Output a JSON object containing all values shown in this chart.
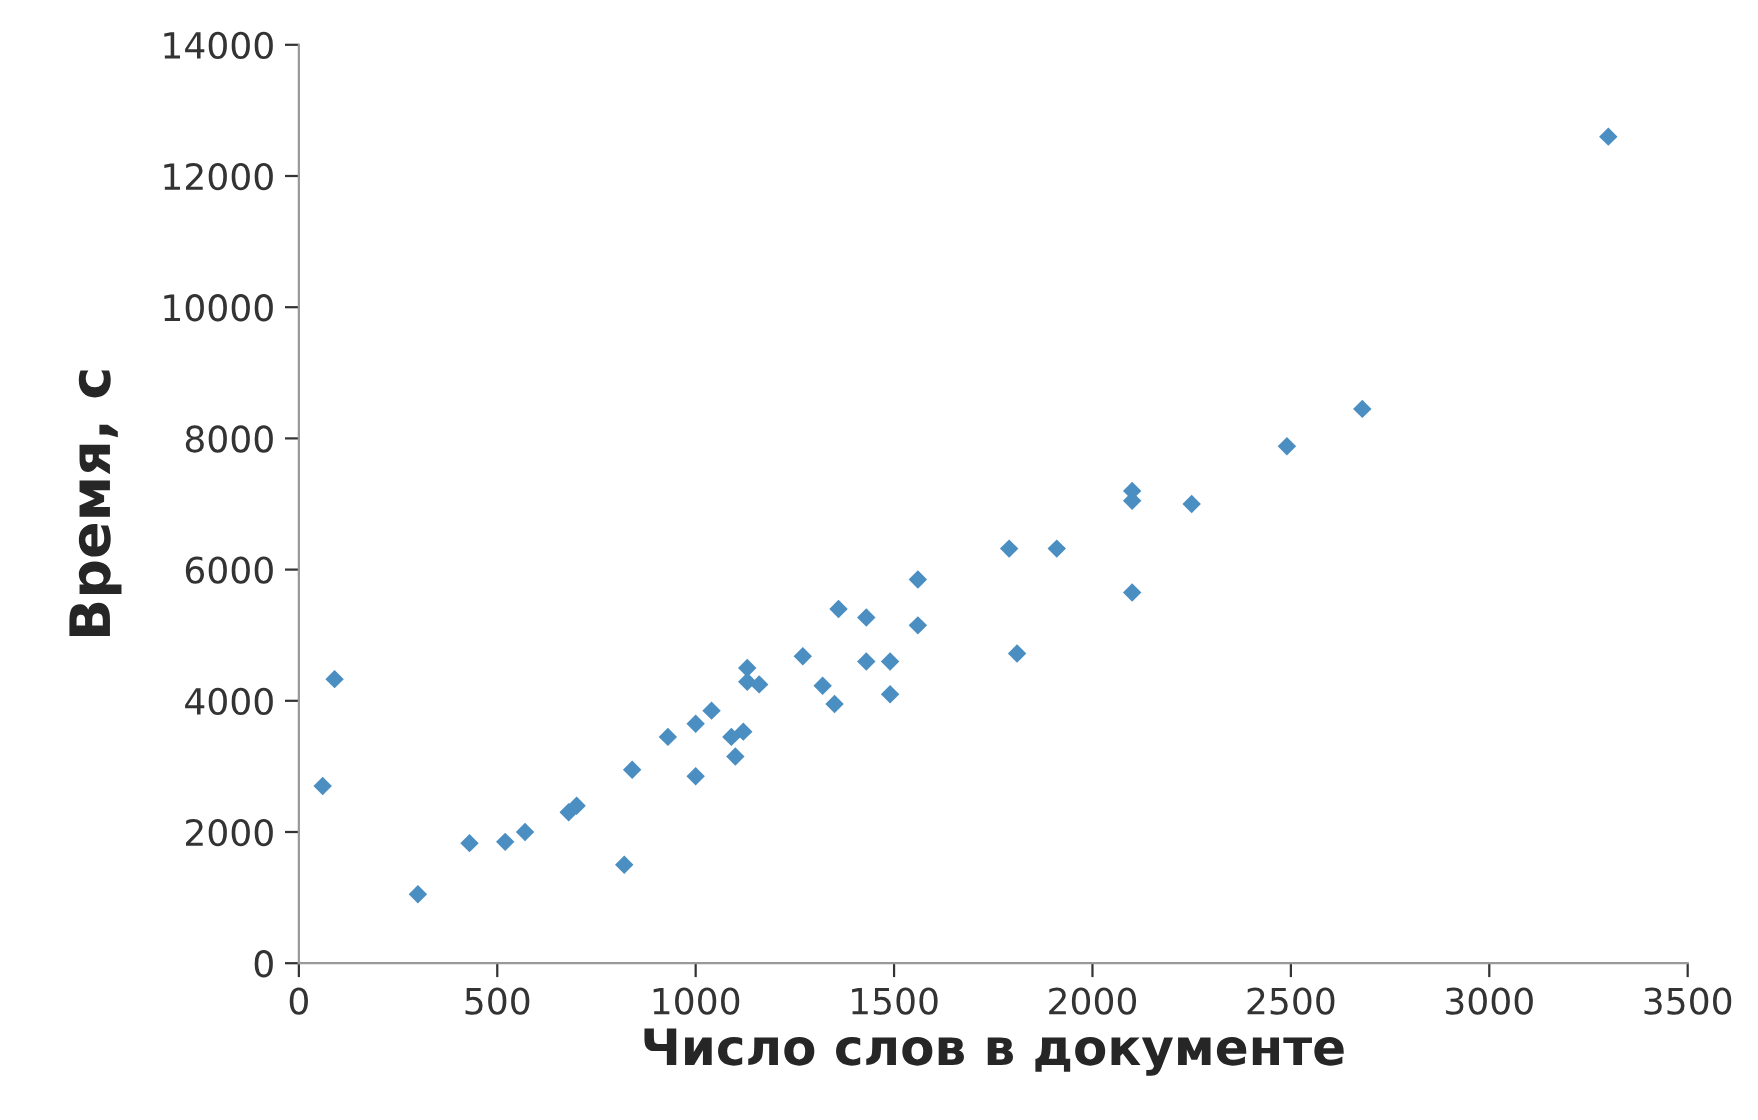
{
  "chart_data": {
    "type": "scatter",
    "xlabel": "Число слов в документе",
    "ylabel": "Время, с",
    "x": [
      60,
      90,
      300,
      430,
      520,
      570,
      680,
      700,
      820,
      840,
      930,
      1000,
      1000,
      1040,
      1100,
      1090,
      1120,
      1130,
      1130,
      1160,
      1270,
      1360,
      1320,
      1350,
      1430,
      1430,
      1490,
      1490,
      1560,
      1560,
      1790,
      1910,
      1810,
      2100,
      2100,
      2250,
      2100,
      2490,
      2680,
      3300
    ],
    "series": [
      {
        "color": "#4a8ec2",
        "values": [
          2700,
          4330,
          1050,
          1830,
          1850,
          2000,
          2300,
          2400,
          1500,
          2950,
          3450,
          2850,
          3650,
          3850,
          3150,
          3450,
          3530,
          4500,
          4290,
          4250,
          4680,
          5400,
          4230,
          3950,
          5270,
          4600,
          4600,
          4100,
          5850,
          5150,
          6320,
          6320,
          4720,
          7200,
          7050,
          7000,
          5650,
          7880,
          8450,
          12600
        ]
      }
    ],
    "xlim": [
      0,
      3500
    ],
    "xticks": [
      0,
      500,
      1000,
      1500,
      2000,
      2500,
      3000,
      3500
    ],
    "ylim": [
      0,
      14000
    ],
    "yticks": [
      0,
      2000,
      4000,
      6000,
      8000,
      10000,
      12000,
      14000
    ],
    "marker": "diamond",
    "grid": false
  }
}
